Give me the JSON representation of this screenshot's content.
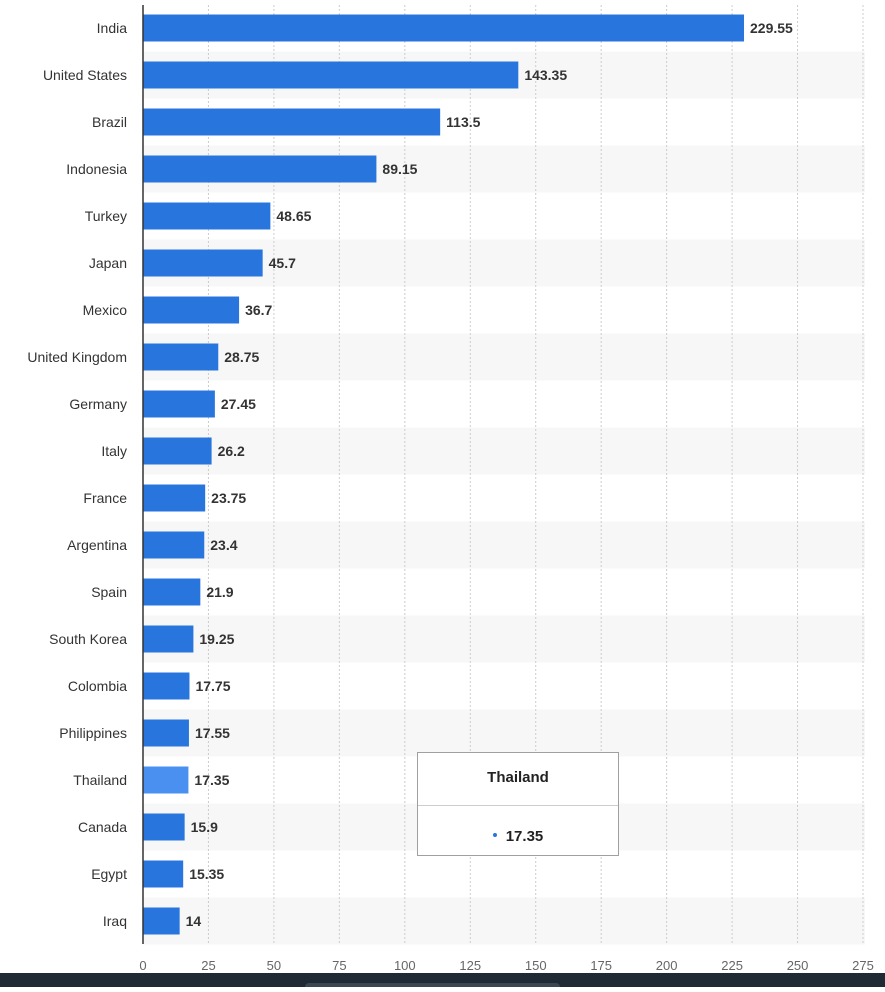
{
  "chart_data": {
    "type": "bar",
    "orientation": "horizontal",
    "categories": [
      "India",
      "United States",
      "Brazil",
      "Indonesia",
      "Turkey",
      "Japan",
      "Mexico",
      "United Kingdom",
      "Germany",
      "Italy",
      "France",
      "Argentina",
      "Spain",
      "South Korea",
      "Colombia",
      "Philippines",
      "Thailand",
      "Canada",
      "Egypt",
      "Iraq"
    ],
    "values": [
      229.55,
      143.35,
      113.5,
      89.15,
      48.65,
      45.7,
      36.7,
      28.75,
      27.45,
      26.2,
      23.75,
      23.4,
      21.9,
      19.25,
      17.75,
      17.55,
      17.35,
      15.9,
      15.35,
      14
    ],
    "value_labels": [
      "229.55",
      "143.35",
      "113.5",
      "89.15",
      "48.65",
      "45.7",
      "36.7",
      "28.75",
      "27.45",
      "26.2",
      "23.75",
      "23.4",
      "21.9",
      "19.25",
      "17.75",
      "17.55",
      "17.35",
      "15.9",
      "15.35",
      "14"
    ],
    "title": "",
    "xlabel": "",
    "ylabel": "",
    "xlim": [
      0,
      275
    ],
    "x_ticks": [
      0,
      25,
      50,
      75,
      100,
      125,
      150,
      175,
      200,
      225,
      250,
      275
    ],
    "grid": "vertical dotted",
    "legend": "none",
    "highlighted_category": "Thailand",
    "colors": {
      "bar": "#2876dd",
      "bar_highlight": "#4a90f0",
      "band_alt": "#f7f7f7",
      "grid": "#cccccc",
      "axis": "#333333"
    }
  },
  "tooltip": {
    "title": "Thailand",
    "value": "17.35"
  }
}
